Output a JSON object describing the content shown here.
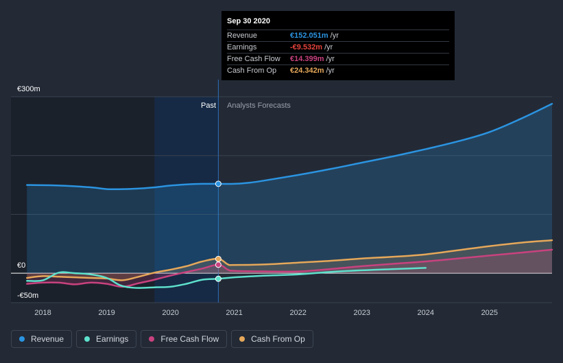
{
  "colors": {
    "revenue": "#2b94e1",
    "earnings": "#5ee1cd",
    "fcf": "#c9427f",
    "cfo": "#e6a85a",
    "earnings_negative": "#e8433c"
  },
  "tooltip": {
    "date": "Sep 30 2020",
    "rows": [
      {
        "label": "Revenue",
        "value": "€152.051m",
        "unit": "/yr"
      },
      {
        "label": "Earnings",
        "value": "-€9.532m",
        "unit": "/yr"
      },
      {
        "label": "Free Cash Flow",
        "value": "€14.399m",
        "unit": "/yr"
      },
      {
        "label": "Cash From Op",
        "value": "€24.342m",
        "unit": "/yr"
      }
    ]
  },
  "legend": {
    "items": [
      {
        "label": "Revenue",
        "icon": "dot-icon"
      },
      {
        "label": "Earnings",
        "icon": "dot-icon"
      },
      {
        "label": "Free Cash Flow",
        "icon": "dot-icon"
      },
      {
        "label": "Cash From Op",
        "icon": "dot-icon"
      }
    ]
  },
  "chart_data": {
    "type": "line",
    "title": "",
    "xlabel": "",
    "ylabel": "",
    "ylim": [
      -50,
      300
    ],
    "xlim": [
      2017.5,
      2025.98
    ],
    "y_ticks": [
      {
        "value": 300,
        "label": "€300m"
      },
      {
        "value": 0,
        "label": "€0"
      },
      {
        "value": -50,
        "label": "-€50m"
      }
    ],
    "x_ticks": [
      2018,
      2019,
      2020,
      2021,
      2022,
      2023,
      2024,
      2025
    ],
    "x_tick_labels": [
      "2018",
      "2019",
      "2020",
      "2021",
      "2022",
      "2023",
      "2024",
      "2025"
    ],
    "divider_x": 2020.75,
    "past_label": "Past",
    "forecast_label": "Analysts Forecasts",
    "series": [
      {
        "name": "Revenue",
        "key": "revenue",
        "x": [
          2017.75,
          2018.25,
          2018.75,
          2019.0,
          2019.25,
          2019.5,
          2019.75,
          2020.0,
          2020.25,
          2020.5,
          2020.75,
          2021.0,
          2021.25,
          2021.5,
          2022.0,
          2022.5,
          2023.0,
          2023.5,
          2024.0,
          2024.5,
          2025.0,
          2025.5,
          2025.98
        ],
        "y": [
          150,
          149,
          146,
          143,
          143,
          144,
          146,
          149,
          151,
          152,
          152,
          152,
          154,
          158,
          167,
          177,
          188,
          199,
          211,
          224,
          240,
          263,
          288
        ]
      },
      {
        "name": "Earnings",
        "key": "earnings",
        "x": [
          2017.75,
          2018.0,
          2018.25,
          2018.5,
          2018.75,
          2019.0,
          2019.2,
          2019.35,
          2019.5,
          2019.75,
          2020.0,
          2020.25,
          2020.5,
          2020.75,
          2021.0,
          2021.5,
          2022.0,
          2022.5,
          2023.0,
          2023.5,
          2024.0
        ],
        "y": [
          -13,
          -12,
          1,
          0,
          -2,
          -8,
          -20,
          -24,
          -25,
          -24,
          -23,
          -18,
          -11,
          -9.5,
          -7,
          -4,
          -2,
          2,
          5,
          7,
          9
        ]
      },
      {
        "name": "Free Cash Flow",
        "key": "fcf",
        "x": [
          2017.75,
          2018.0,
          2018.25,
          2018.5,
          2018.75,
          2019.0,
          2019.25,
          2019.5,
          2019.75,
          2020.0,
          2020.25,
          2020.5,
          2020.75,
          2020.9,
          2021.0,
          2021.5,
          2022.0,
          2022.5,
          2023.0,
          2023.5,
          2024.0,
          2024.5,
          2025.0,
          2025.5,
          2025.98
        ],
        "y": [
          -18,
          -16,
          -16,
          -19,
          -16,
          -18,
          -23,
          -17,
          -11,
          -4,
          2,
          8,
          14.4,
          6,
          4,
          3,
          3,
          7,
          12,
          16,
          20,
          25,
          30,
          35,
          40
        ]
      },
      {
        "name": "Cash From Op",
        "key": "cfo",
        "x": [
          2017.75,
          2018.0,
          2018.25,
          2018.5,
          2018.75,
          2019.0,
          2019.25,
          2019.5,
          2019.75,
          2020.0,
          2020.25,
          2020.5,
          2020.75,
          2020.9,
          2021.0,
          2021.5,
          2022.0,
          2022.5,
          2023.0,
          2023.5,
          2024.0,
          2024.5,
          2025.0,
          2025.5,
          2025.98
        ],
        "y": [
          -8,
          -5,
          -6,
          -7,
          -8,
          -9,
          -12,
          -6,
          1,
          6,
          12,
          20,
          24.3,
          15,
          14,
          15,
          18,
          21,
          25,
          28,
          32,
          39,
          46,
          52,
          56
        ]
      }
    ]
  }
}
